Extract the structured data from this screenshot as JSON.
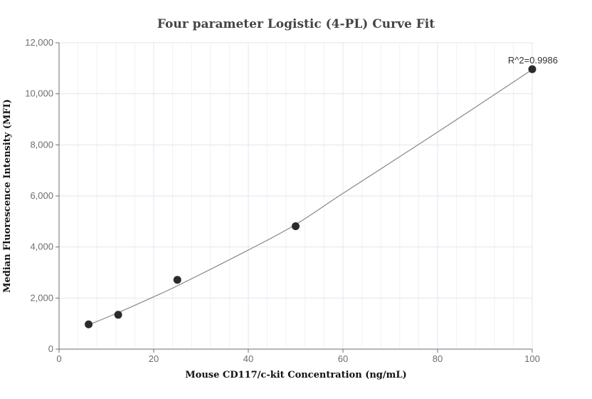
{
  "chart_data": {
    "type": "scatter",
    "title": "Four parameter Logistic (4-PL) Curve Fit",
    "xlabel": "Mouse CD117/c-kit Concentration (ng/mL)",
    "ylabel": "Median Fluorescence Intensity (MFI)",
    "xlim": [
      0,
      100
    ],
    "ylim": [
      0,
      12000
    ],
    "x_ticks": [
      "0",
      "20",
      "40",
      "60",
      "80",
      "100"
    ],
    "y_ticks": [
      "0",
      "2,000",
      "4,000",
      "6,000",
      "8,000",
      "10,000",
      "12,000"
    ],
    "grid": true,
    "points": {
      "x": [
        6.25,
        12.5,
        25,
        50,
        100
      ],
      "y": [
        970,
        1345,
        2715,
        4815,
        10965
      ]
    },
    "fit_curve": {
      "x": [
        6.25,
        12.5,
        20,
        25,
        40,
        50,
        60,
        80,
        100
      ],
      "y": [
        950,
        1430,
        2050,
        2480,
        3880,
        4880,
        6100,
        8500,
        10950
      ]
    },
    "annotation": "R^2=0.9986",
    "colors": {
      "points": "#2b2b2b",
      "curve": "#888888",
      "grid": "#e3e6f0",
      "axis": "#6e6e78"
    }
  }
}
